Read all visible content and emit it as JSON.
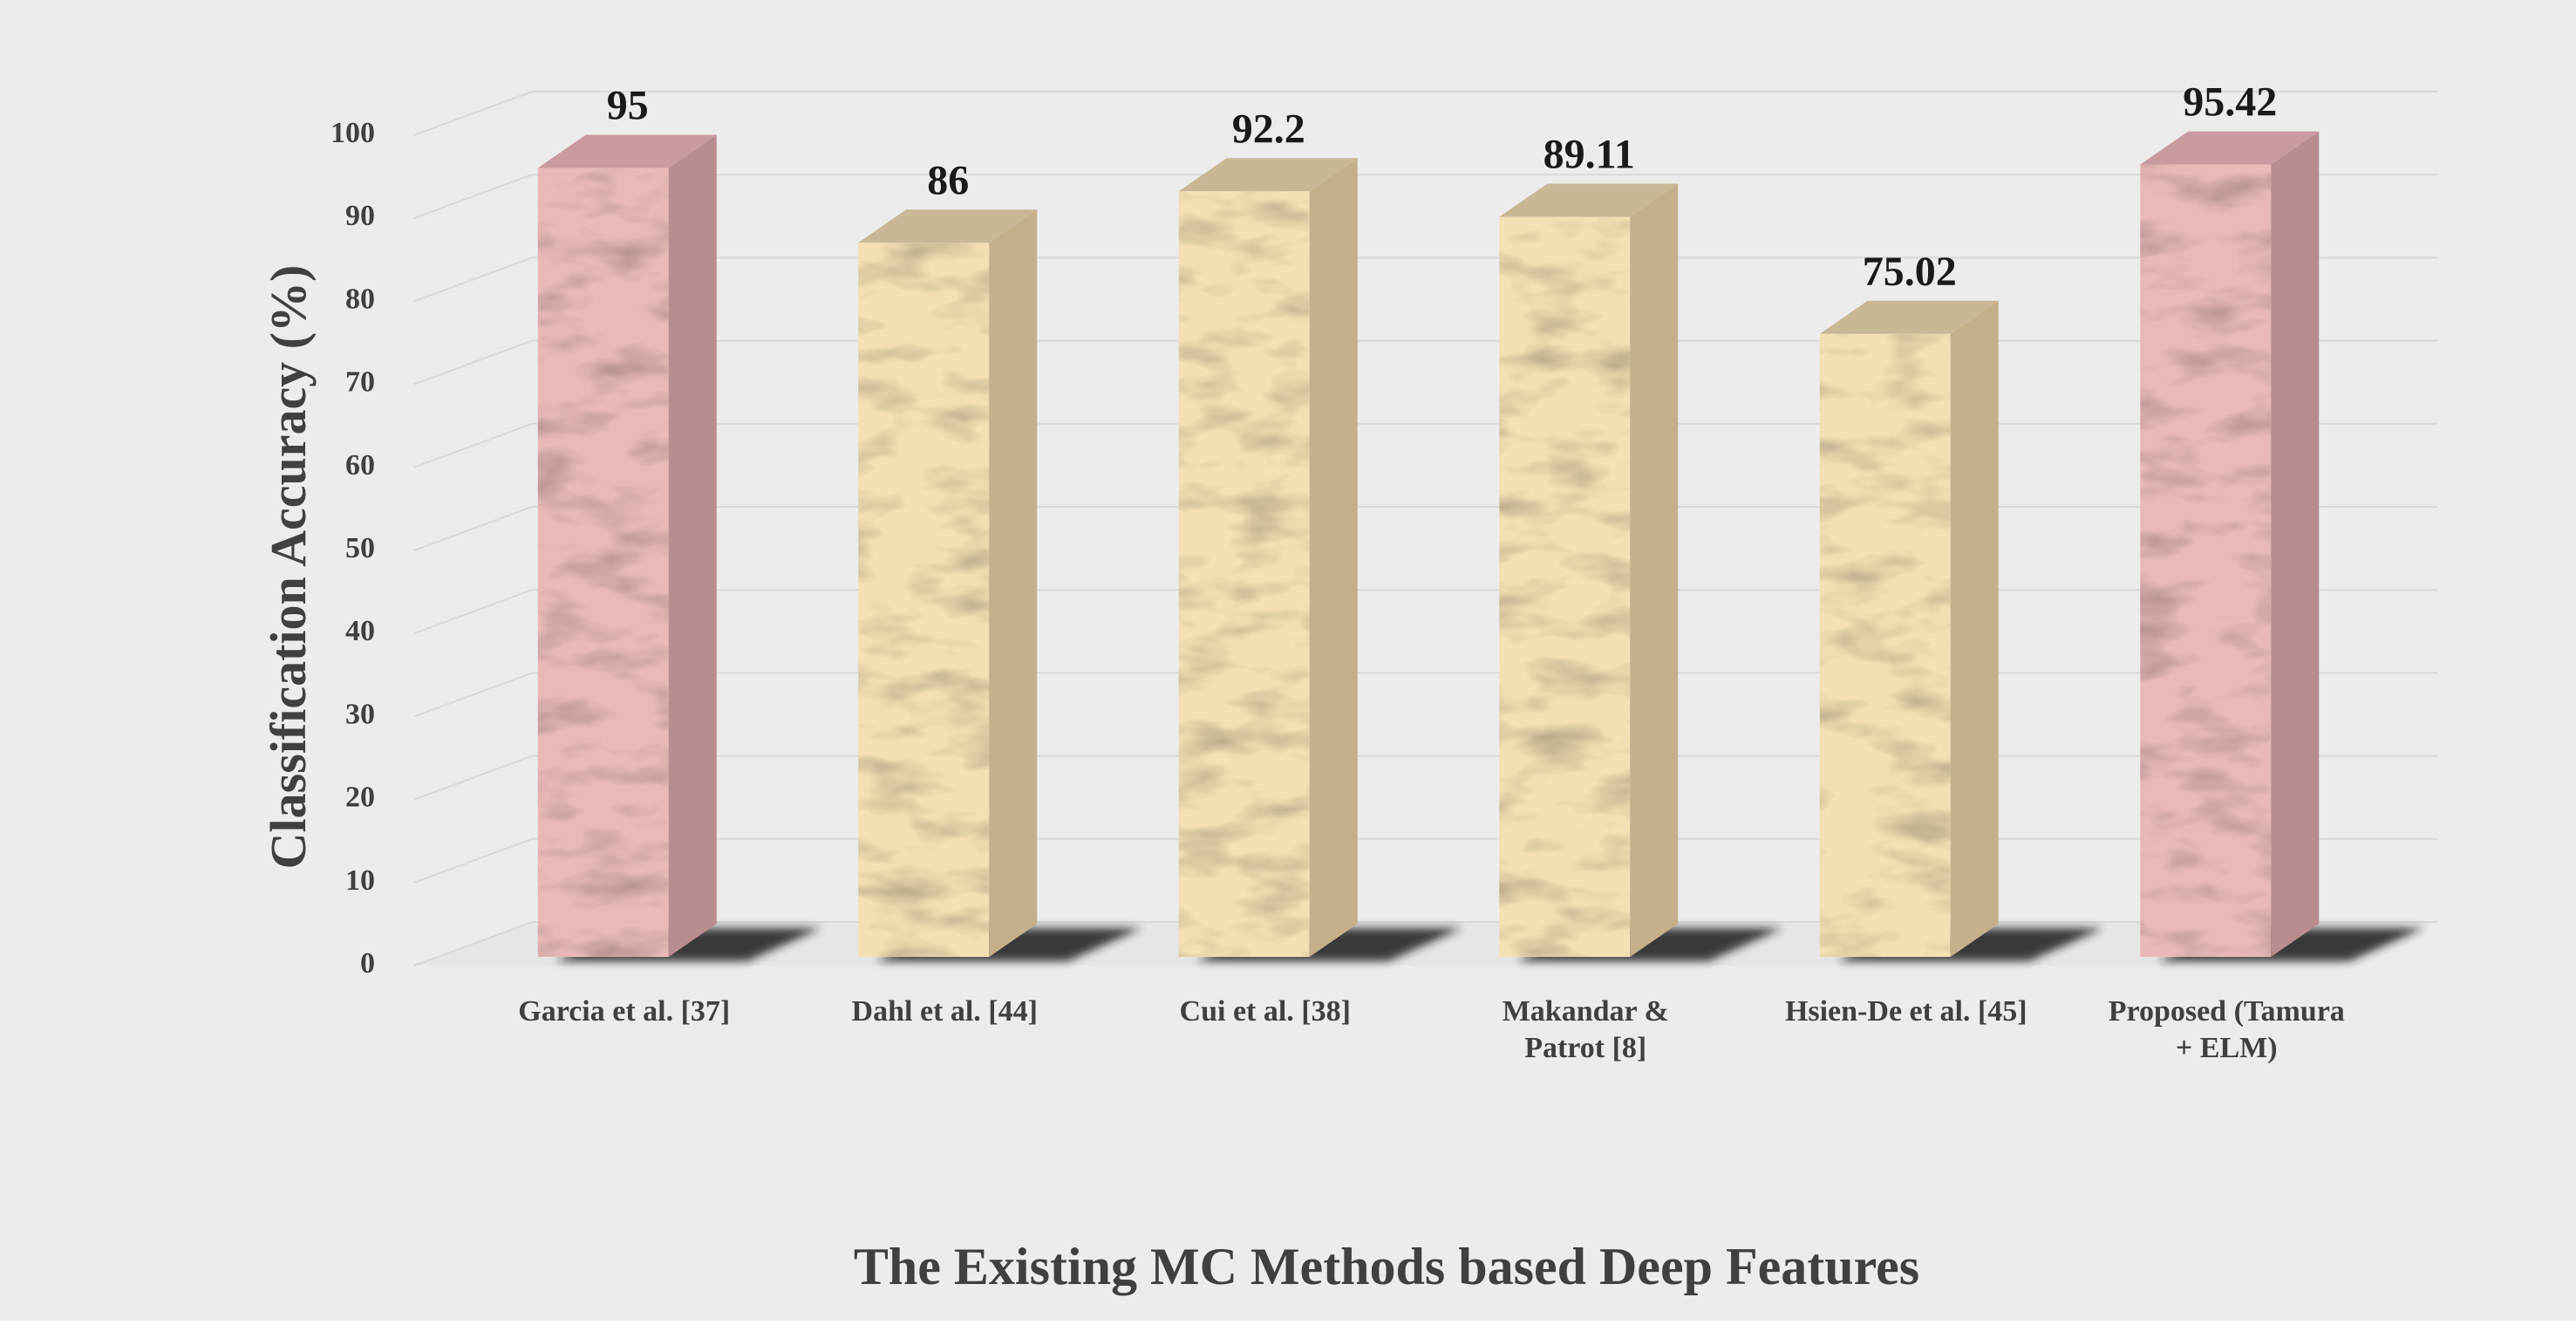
{
  "chart_data": {
    "type": "bar",
    "style": "3d-column",
    "title": "",
    "xlabel": "The Existing MC Methods based Deep Features",
    "ylabel": "Classification Accuracy (%)",
    "ylim": [
      0,
      100
    ],
    "yticks": [
      0,
      10,
      20,
      30,
      40,
      50,
      60,
      70,
      80,
      90,
      100
    ],
    "grid": true,
    "categories": [
      [
        "Garcia et al. [37]"
      ],
      [
        "Dahl et al. [44]"
      ],
      [
        "Cui et al. [38]"
      ],
      [
        "Makandar &",
        "Patrot [8]"
      ],
      [
        "Hsien-De et al. [45]"
      ],
      [
        "Proposed (Tamura",
        "+ ELM)"
      ]
    ],
    "values": [
      95,
      86,
      92.2,
      89.11,
      75.02,
      95.42
    ],
    "value_labels": [
      "95",
      "86",
      "92.2",
      "89.11",
      "75.02",
      "95.42"
    ],
    "bar_styles": [
      "pink",
      "sand",
      "sand",
      "sand",
      "sand",
      "pink"
    ],
    "colors": {
      "background": "#ececec",
      "grid": "#d9d9d9",
      "text": "#404040",
      "pink_front": "#e9b9b9",
      "pink_side": "#b98c8f",
      "pink_top": "#c99aa0",
      "sand_front": "#f4e0b4",
      "sand_side": "#c4b08a",
      "sand_top": "#c9b896"
    }
  }
}
